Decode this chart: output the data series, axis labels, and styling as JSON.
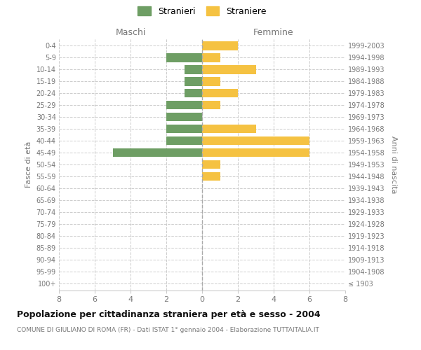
{
  "age_groups": [
    "100+",
    "95-99",
    "90-94",
    "85-89",
    "80-84",
    "75-79",
    "70-74",
    "65-69",
    "60-64",
    "55-59",
    "50-54",
    "45-49",
    "40-44",
    "35-39",
    "30-34",
    "25-29",
    "20-24",
    "15-19",
    "10-14",
    "5-9",
    "0-4"
  ],
  "birth_years": [
    "≤ 1903",
    "1904-1908",
    "1909-1913",
    "1914-1918",
    "1919-1923",
    "1924-1928",
    "1929-1933",
    "1934-1938",
    "1939-1943",
    "1944-1948",
    "1949-1953",
    "1954-1958",
    "1959-1963",
    "1964-1968",
    "1969-1973",
    "1974-1978",
    "1979-1983",
    "1984-1988",
    "1989-1993",
    "1994-1998",
    "1999-2003"
  ],
  "maschi": [
    0,
    0,
    0,
    0,
    0,
    0,
    0,
    0,
    0,
    0,
    0,
    5,
    2,
    2,
    2,
    2,
    1,
    1,
    1,
    2,
    0
  ],
  "femmine": [
    0,
    0,
    0,
    0,
    0,
    0,
    0,
    0,
    0,
    1,
    1,
    6,
    6,
    3,
    0,
    1,
    2,
    1,
    3,
    1,
    2
  ],
  "maschi_color": "#6e9e64",
  "femmine_color": "#f5c242",
  "title": "Popolazione per cittadinanza straniera per età e sesso - 2004",
  "subtitle": "COMUNE DI GIULIANO DI ROMA (FR) - Dati ISTAT 1° gennaio 2004 - Elaborazione TUTTAITALIA.IT",
  "ylabel_left": "Fasce di età",
  "ylabel_right": "Anni di nascita",
  "header_maschi": "Maschi",
  "header_femmine": "Femmine",
  "legend_maschi": "Stranieri",
  "legend_femmine": "Straniere",
  "xlim": 8,
  "bg_color": "#ffffff",
  "grid_color": "#cccccc",
  "text_color": "#777777",
  "title_color": "#111111"
}
